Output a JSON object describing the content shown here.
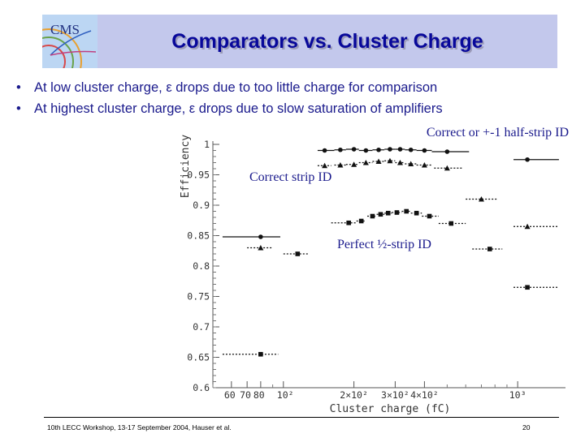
{
  "slide": {
    "title": "Comparators vs. Cluster Charge",
    "logo_text": "CMS",
    "bullets": [
      "At low cluster charge, ε drops due to too little charge for comparison",
      "At highest cluster charge, ε drops due to slow saturation of amplifiers"
    ],
    "footer": "10th LECC Workshop, 13-17 September 2004, Hauser et al.",
    "page_number": "20"
  },
  "chart_data": {
    "type": "scatter",
    "xlabel": "Cluster charge (fC)",
    "ylabel": "Efficiency",
    "xscale": "log",
    "xlim": [
      50,
      1600
    ],
    "ylim": [
      0.6,
      1.0
    ],
    "y_tick_labels": [
      "1",
      "0.95",
      "0.9",
      "0.85",
      "0.8",
      "0.75",
      "0.7",
      "0.65",
      "0.6"
    ],
    "x_tick_labels": [
      "60",
      "70",
      "80",
      "10²",
      "2×10²",
      "3×10²",
      "4×10²",
      "10³"
    ],
    "series": [
      {
        "name": "Correct or +-1 half-strip ID",
        "marker": "circle",
        "line": "solid",
        "points": [
          {
            "x": 80,
            "y": 0.848,
            "xlo": 55,
            "xhi": 97
          },
          {
            "x": 150,
            "y": 0.99,
            "xlo": 140,
            "xhi": 165
          },
          {
            "x": 175,
            "y": 0.991,
            "xlo": 165,
            "xhi": 185
          },
          {
            "x": 200,
            "y": 0.992,
            "xlo": 185,
            "xhi": 210
          },
          {
            "x": 225,
            "y": 0.99,
            "xlo": 210,
            "xhi": 240
          },
          {
            "x": 255,
            "y": 0.991,
            "xlo": 240,
            "xhi": 270
          },
          {
            "x": 285,
            "y": 0.992,
            "xlo": 270,
            "xhi": 300
          },
          {
            "x": 315,
            "y": 0.992,
            "xlo": 300,
            "xhi": 330
          },
          {
            "x": 350,
            "y": 0.991,
            "xlo": 330,
            "xhi": 370
          },
          {
            "x": 400,
            "y": 0.99,
            "xlo": 370,
            "xhi": 430
          },
          {
            "x": 500,
            "y": 0.988,
            "xlo": 430,
            "xhi": 620
          },
          {
            "x": 1100,
            "y": 0.975,
            "xlo": 960,
            "xhi": 1500
          }
        ]
      },
      {
        "name": "Correct strip ID",
        "marker": "triangle",
        "line": "dotted",
        "points": [
          {
            "x": 80,
            "y": 0.83,
            "xlo": 70,
            "xhi": 90
          },
          {
            "x": 150,
            "y": 0.965,
            "xlo": 140,
            "xhi": 160
          },
          {
            "x": 175,
            "y": 0.966,
            "xlo": 165,
            "xhi": 185
          },
          {
            "x": 200,
            "y": 0.967,
            "xlo": 185,
            "xhi": 210
          },
          {
            "x": 225,
            "y": 0.97,
            "xlo": 210,
            "xhi": 240
          },
          {
            "x": 255,
            "y": 0.972,
            "xlo": 240,
            "xhi": 270
          },
          {
            "x": 285,
            "y": 0.973,
            "xlo": 270,
            "xhi": 300
          },
          {
            "x": 315,
            "y": 0.97,
            "xlo": 300,
            "xhi": 330
          },
          {
            "x": 350,
            "y": 0.968,
            "xlo": 330,
            "xhi": 370
          },
          {
            "x": 400,
            "y": 0.966,
            "xlo": 370,
            "xhi": 430
          },
          {
            "x": 500,
            "y": 0.961,
            "xlo": 440,
            "xhi": 580
          },
          {
            "x": 700,
            "y": 0.91,
            "xlo": 600,
            "xhi": 820
          },
          {
            "x": 1100,
            "y": 0.865,
            "xlo": 960,
            "xhi": 1500
          }
        ]
      },
      {
        "name": "Perfect ½-strip ID",
        "marker": "square",
        "line": "dotted",
        "points": [
          {
            "x": 80,
            "y": 0.655,
            "xlo": 55,
            "xhi": 95
          },
          {
            "x": 115,
            "y": 0.82,
            "xlo": 100,
            "xhi": 128
          },
          {
            "x": 190,
            "y": 0.871,
            "xlo": 160,
            "xhi": 205
          },
          {
            "x": 215,
            "y": 0.874,
            "xlo": 205,
            "xhi": 225
          },
          {
            "x": 240,
            "y": 0.882,
            "xlo": 228,
            "xhi": 250
          },
          {
            "x": 260,
            "y": 0.885,
            "xlo": 250,
            "xhi": 270
          },
          {
            "x": 280,
            "y": 0.887,
            "xlo": 270,
            "xhi": 290
          },
          {
            "x": 305,
            "y": 0.888,
            "xlo": 290,
            "xhi": 320
          },
          {
            "x": 335,
            "y": 0.89,
            "xlo": 320,
            "xhi": 350
          },
          {
            "x": 370,
            "y": 0.887,
            "xlo": 350,
            "xhi": 390
          },
          {
            "x": 420,
            "y": 0.882,
            "xlo": 390,
            "xhi": 460
          },
          {
            "x": 520,
            "y": 0.87,
            "xlo": 460,
            "xhi": 600
          },
          {
            "x": 760,
            "y": 0.828,
            "xlo": 640,
            "xhi": 860
          },
          {
            "x": 1100,
            "y": 0.765,
            "xlo": 960,
            "xhi": 1500
          }
        ]
      }
    ],
    "annotations": [
      "Correct or +-1 half-strip ID",
      "Correct strip ID",
      "Perfect ½-strip ID"
    ],
    "grid": false,
    "legend": "none"
  }
}
